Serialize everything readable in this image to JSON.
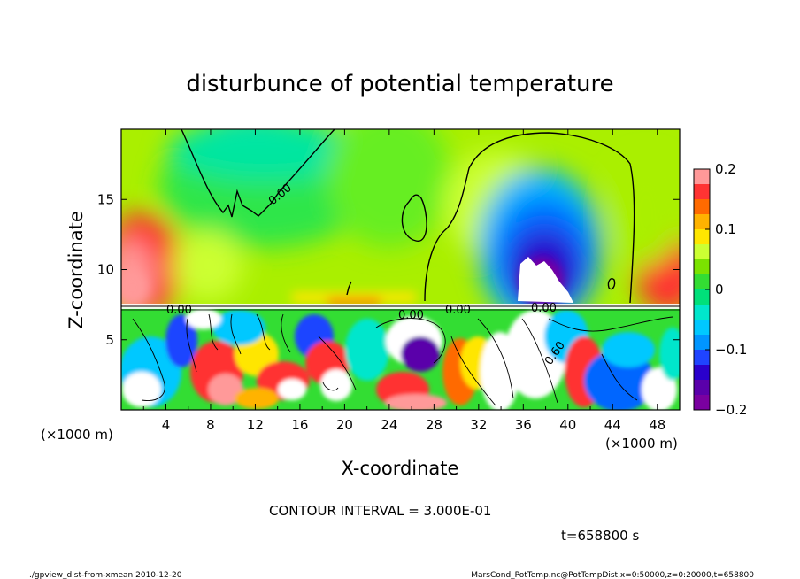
{
  "chart_data": {
    "type": "heatmap",
    "title": "disturbunce of potential temperature",
    "xlabel": "X-coordinate",
    "ylabel": "Z-coordinate",
    "x_unit": "(×1000 m)",
    "x_unit_right": "(×1000 m)",
    "xlim": [
      0,
      50
    ],
    "ylim": [
      0,
      20
    ],
    "xticks": [
      "4",
      "8",
      "12",
      "16",
      "20",
      "24",
      "28",
      "32",
      "36",
      "40",
      "44",
      "48"
    ],
    "yticks": [
      "5",
      "10",
      "15"
    ],
    "colorbar": {
      "ticks": [
        "0.2",
        "0.1",
        "0",
        "−0.1",
        "−0.2"
      ],
      "range": [
        -0.2,
        0.2
      ],
      "colors": [
        "#ff9999",
        "#ff3333",
        "#ff6a00",
        "#ffb300",
        "#ffe600",
        "#ccff33",
        "#7be300",
        "#33dd33",
        "#00e07a",
        "#00e6cc",
        "#00c8ff",
        "#0095ff",
        "#1f44ff",
        "#2a00cc",
        "#5a00aa",
        "#7a00a0"
      ]
    },
    "contour_labels": [
      "0.00",
      "0.00",
      "0.00",
      "0.00",
      "0.00",
      "0.60"
    ],
    "contour_interval_text": "CONTOUR INTERVAL = 3.000E-01",
    "time_text": "t=658800 s"
  },
  "footer": {
    "left": "./gpview_dist-from-xmean   2010-12-20",
    "right": "MarsCond_PotTemp.nc@PotTempDist,x=0:50000,z=0:20000,t=658800"
  }
}
